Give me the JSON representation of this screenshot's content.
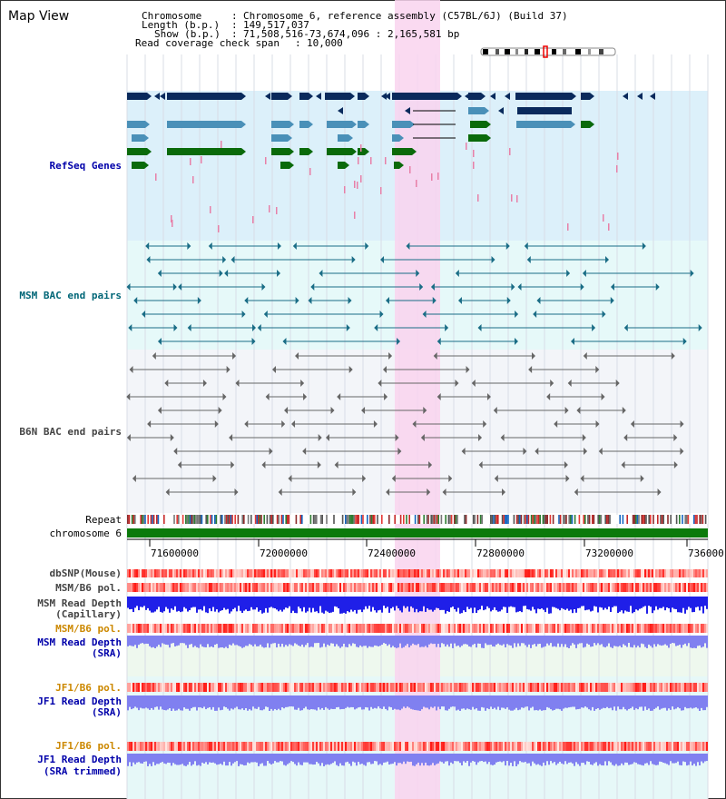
{
  "app": {
    "title": "Map View"
  },
  "header": {
    "chromosome_label": "Chromosome",
    "chromosome_value": "Chromosome 6, reference assembly (C57BL/6J) (Build 37)",
    "length_label": "Length (b.p.)",
    "length_value": "149,517,037",
    "show_label": "Show (b.p.)",
    "show_value": "71,508,516-73,674,096 : 2,165,581 bp",
    "coverage_label": "Read coverage check span",
    "coverage_value": "10,000"
  },
  "tracks": {
    "refseq": "RefSeq Genes",
    "msm_bac": "MSM BAC end pairs",
    "b6n_bac": "B6N BAC end pairs",
    "repeat": "Repeat",
    "chromosome": "chromosome 6",
    "dbsnp": "dbSNP(Mouse)",
    "msm_b6_pol_1": "MSM/B6 pol.",
    "msm_read_depth_cap_1": "MSM Read Depth",
    "msm_read_depth_cap_2": "(Capillary)",
    "msm_b6_pol_2": "MSM/B6 pol.",
    "msm_read_depth_sra_1": "MSM Read Depth",
    "msm_read_depth_sra_2": "(SRA)",
    "jf1_b6_pol_1": "JF1/B6 pol.",
    "jf1_read_depth_sra_1": "JF1 Read Depth",
    "jf1_read_depth_sra_2": "(SRA)",
    "jf1_b6_pol_2": "JF1/B6 pol.",
    "jf1_read_depth_trim_1": "JF1 Read Depth",
    "jf1_read_depth_trim_2": "(SRA trimmed)"
  },
  "axis": {
    "ticks": [
      "71600000",
      "72000000",
      "72400000",
      "72800000",
      "73200000",
      "736000"
    ]
  },
  "colors": {
    "highlight": "#f9d3ee",
    "refseq_bg": "#dcf0fa",
    "msm_bg": "#e6f9f9",
    "b6n_bg": "#f3f5f9",
    "gene_dark": "#0a2a5c",
    "gene_mid": "#4a90b8",
    "gene_green": "#0a6a0a",
    "msm_line": "#1a6d86",
    "b6n_line": "#666666",
    "chromosome": "#0b7a0b",
    "depth_dark": "#1f1fe8",
    "depth_light": "#8080f0"
  }
}
